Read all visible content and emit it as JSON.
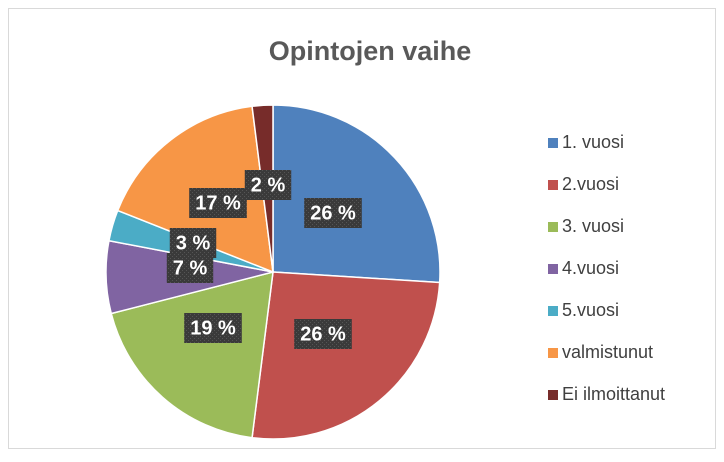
{
  "chart_data": {
    "type": "pie",
    "title": "Opintojen vaihe",
    "categories": [
      "1. vuosi",
      "2.vuosi",
      "3. vuosi",
      "4.vuosi",
      "5.vuosi",
      "valmistunut",
      "Ei ilmoittanut"
    ],
    "values": [
      26,
      26,
      19,
      7,
      3,
      17,
      2
    ],
    "value_labels": [
      "26 %",
      "26 %",
      "19 %",
      "7 %",
      "3 %",
      "17 %",
      "2 %"
    ],
    "colors": [
      "#4f81bd",
      "#c0504d",
      "#9bbb59",
      "#8064a2",
      "#4bacc6",
      "#f79646",
      "#772c2a"
    ],
    "legend": "right"
  }
}
